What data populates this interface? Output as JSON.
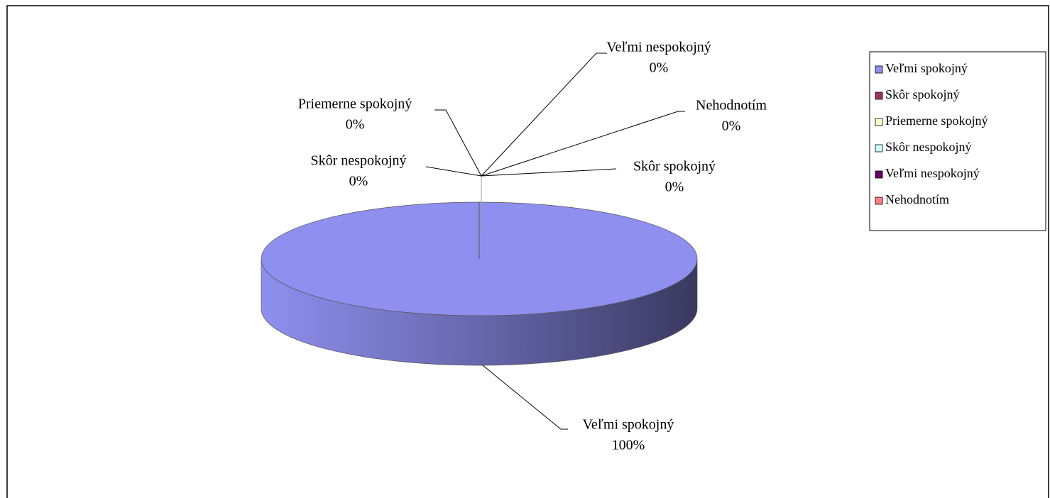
{
  "chart_data": {
    "type": "pie",
    "categories": [
      "Veľmi spokojný",
      "Skôr spokojný",
      "Priemerne spokojný",
      "Skôr nespokojný",
      "Veľmi nespokojný",
      "Nehodnotím"
    ],
    "values": [
      100,
      0,
      0,
      0,
      0,
      0
    ],
    "value_labels": [
      "100%",
      "0%",
      "0%",
      "0%",
      "0%",
      "0%"
    ],
    "colors": [
      "#8f8fef",
      "#993366",
      "#ffffcc",
      "#ccffff",
      "#660066",
      "#ff8080"
    ],
    "legend": "right"
  }
}
